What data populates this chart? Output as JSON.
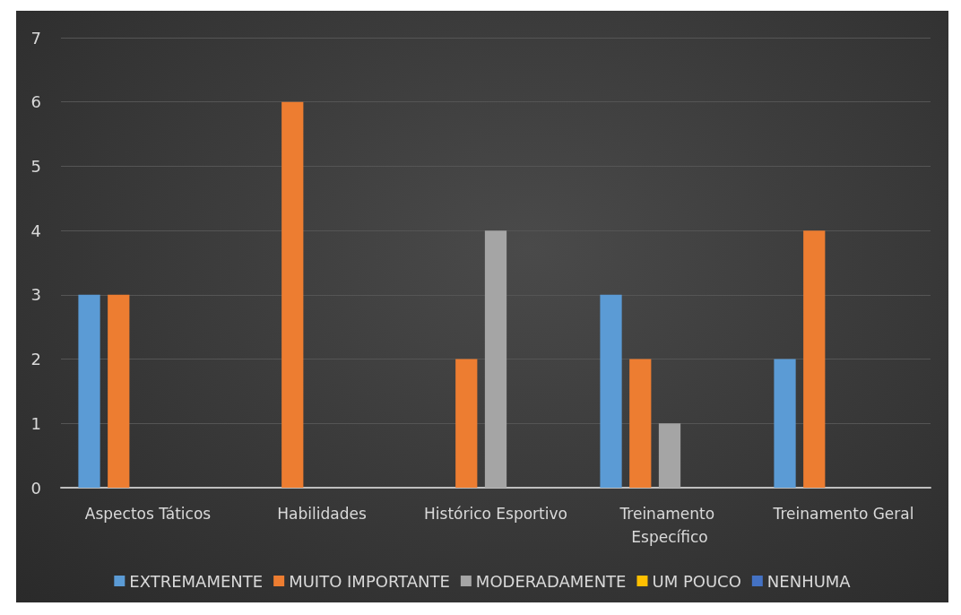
{
  "chart_data": {
    "type": "bar",
    "categories": [
      "Aspectos Táticos",
      "Habilidades",
      "Histórico Esportivo",
      "Treinamento Específico",
      "Treinamento Geral"
    ],
    "series": [
      {
        "name": "EXTREMAMENTE",
        "color": "#5b9bd5",
        "values": [
          3,
          0,
          0,
          3,
          2
        ]
      },
      {
        "name": "MUITO IMPORTANTE",
        "color": "#ed7d31",
        "values": [
          3,
          6,
          2,
          2,
          4
        ]
      },
      {
        "name": "MODERADAMENTE",
        "color": "#a5a5a5",
        "values": [
          0,
          0,
          4,
          1,
          0
        ]
      },
      {
        "name": "UM POUCO",
        "color": "#ffc000",
        "values": [
          0,
          0,
          0,
          0,
          0
        ]
      },
      {
        "name": "NENHUMA",
        "color": "#4472c4",
        "values": [
          0,
          0,
          0,
          0,
          0
        ]
      }
    ],
    "ylim": [
      0,
      7
    ],
    "yticks": [
      0,
      1,
      2,
      3,
      4,
      5,
      6,
      7
    ],
    "grid": "y",
    "legend": "bottom"
  }
}
